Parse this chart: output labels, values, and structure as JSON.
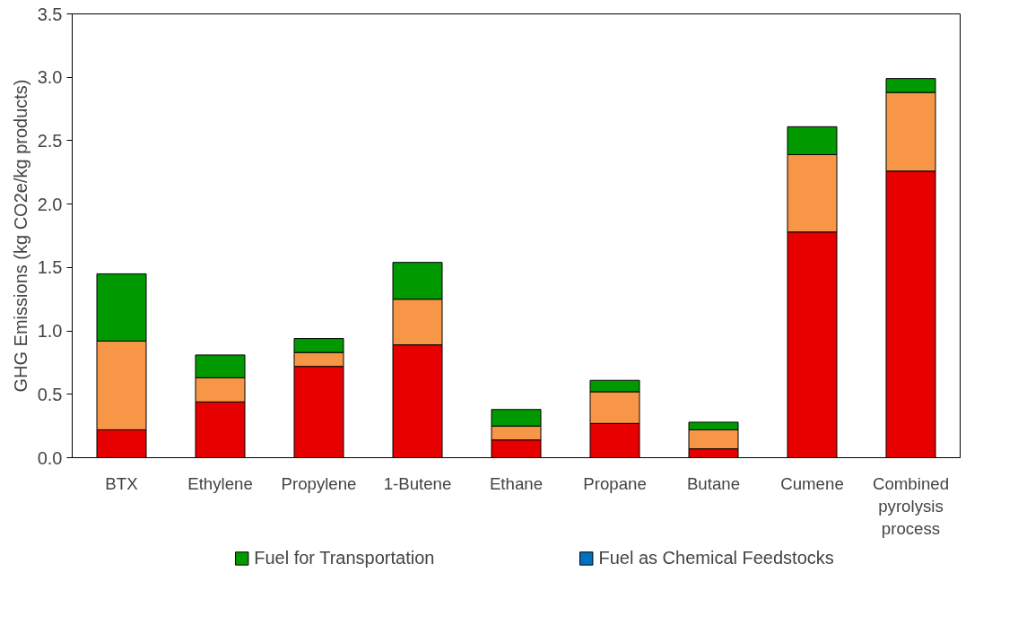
{
  "chart_data": {
    "type": "bar",
    "stacked": true,
    "ylabel": "GHG Emissions (kg CO2e/kg products)",
    "categories": [
      "BTX",
      "Ethylene",
      "Propylene",
      "1-Butene",
      "Ethane",
      "Propane",
      "Butane",
      "Cumene",
      "Combined pyrolysis process"
    ],
    "series": [
      {
        "color": "#e60000",
        "values": [
          0.22,
          0.44,
          0.72,
          0.89,
          0.14,
          0.27,
          0.07,
          1.78,
          2.26
        ]
      },
      {
        "color": "#f79646",
        "values": [
          0.7,
          0.19,
          0.11,
          0.36,
          0.11,
          0.25,
          0.15,
          0.61,
          0.62
        ]
      },
      {
        "name": "Fuel for Transportation",
        "color": "#009900",
        "values": [
          0.53,
          0.18,
          0.11,
          0.29,
          0.13,
          0.09,
          0.06,
          0.22,
          0.11
        ]
      },
      {
        "name": "Fuel as Chemical Feedstocks",
        "color": "#0070c0",
        "values": [
          null,
          null,
          null,
          null,
          null,
          null,
          null,
          null,
          null
        ]
      }
    ],
    "ylim": [
      0,
      3.5
    ],
    "yticks": [
      {
        "value": 0,
        "label": "0.0"
      },
      {
        "value": 0.5,
        "label": "0.5"
      },
      {
        "value": 1,
        "label": "1.0"
      },
      {
        "value": 1.5,
        "label": "1.5"
      },
      {
        "value": 2,
        "label": "2.0"
      },
      {
        "value": 2.5,
        "label": "2.5"
      },
      {
        "value": 3,
        "label": "3.0"
      },
      {
        "value": 3.5,
        "label": "3.5"
      }
    ],
    "grid": false,
    "legend": "bottom"
  }
}
